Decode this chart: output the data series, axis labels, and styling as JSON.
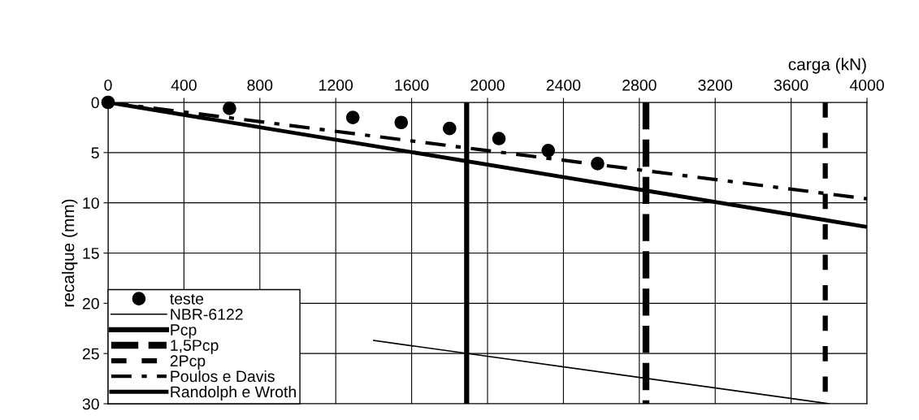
{
  "chart_data": {
    "type": "line",
    "xlabel": "carga (kN)",
    "ylabel": "recalque (mm)",
    "xlim": [
      0,
      4000
    ],
    "xticks": [
      0,
      400,
      800,
      1200,
      1600,
      2000,
      2400,
      2800,
      3200,
      3600,
      4000
    ],
    "ylim": [
      30,
      0
    ],
    "yticks": [
      0,
      5,
      10,
      15,
      20,
      25,
      30
    ],
    "grid": true,
    "legend": "bottom left",
    "series": [
      {
        "name": "teste",
        "type": "scatter",
        "marker": "circle",
        "color": "#000000",
        "x": [
          0,
          640,
          1290,
          1545,
          1800,
          2060,
          2320,
          2580
        ],
        "values": [
          0,
          0.6,
          1.5,
          2.0,
          2.6,
          3.6,
          4.8,
          6.1
        ]
      },
      {
        "name": "NBR-6122",
        "line_style": "solid",
        "color": "#000000",
        "x": [
          1400,
          3800
        ],
        "values": [
          23.7,
          30
        ]
      },
      {
        "name": "Pcp",
        "line_style": "solid",
        "color": "#000000",
        "x": [
          1890,
          1890
        ],
        "values": [
          0,
          30
        ]
      },
      {
        "name": "1,5Pcp",
        "line_style": "longdash",
        "color": "#000000",
        "x": [
          2835,
          2835
        ],
        "values": [
          0,
          30
        ]
      },
      {
        "name": "2Pcp",
        "line_style": "dashed",
        "color": "#000000",
        "x": [
          3780,
          3780
        ],
        "values": [
          0,
          30
        ]
      },
      {
        "name": "Poulos e Davis",
        "line_style": "dashdot",
        "color": "#000000",
        "x": [
          0,
          4000
        ],
        "values": [
          0,
          9.6
        ]
      },
      {
        "name": "Randolph e Wroth",
        "line_style": "solid",
        "color": "#000000",
        "x": [
          0,
          4000
        ],
        "values": [
          0,
          12.4
        ]
      }
    ]
  }
}
